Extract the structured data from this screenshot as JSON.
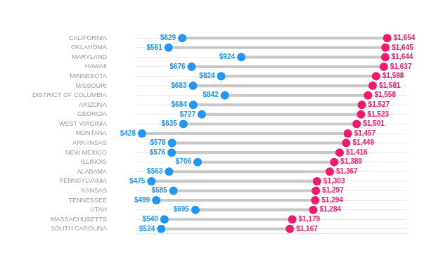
{
  "chart_data": {
    "type": "dumbbell",
    "orientation": "horizontal",
    "categories": [
      "CALIFORNIA",
      "OKLAHOMA",
      "MARYLAND",
      "HAWAII",
      "MINNESOTA",
      "MISSOURI",
      "DISTRICT OF COLUMBIA",
      "ARIZONA",
      "GEORGIA",
      "WEST VIRGINIA",
      "MONTANA",
      "ARKANSAS",
      "NEW MEXICO",
      "ILLINOIS",
      "ALABAMA",
      "PENNSYLVANIA",
      "KANSAS",
      "TENNESSEE",
      "UTAH",
      "MASSACHUSETTS",
      "SOUTH CAROLINA"
    ],
    "color": "#C8C8C8",
    "series": [
      {
        "color": "#2196F3",
        "values": [
          629,
          561,
          924,
          676,
          824,
          683,
          842,
          684,
          727,
          635,
          428,
          578,
          576,
          706,
          563,
          475,
          585,
          499,
          695,
          540,
          524
        ],
        "value_labels": [
          "$629",
          "$561",
          "$924",
          "$676",
          "$824",
          "$683",
          "$842",
          "$684",
          "$727",
          "$635",
          "$428",
          "$578",
          "$576",
          "$706",
          "$563",
          "$475",
          "$585",
          "$499",
          "$695",
          "$540",
          "$524"
        ]
      },
      {
        "color": "#F0196E",
        "values": [
          1654,
          1645,
          1644,
          1637,
          1598,
          1581,
          1558,
          1527,
          1523,
          1501,
          1457,
          1449,
          1416,
          1389,
          1367,
          1303,
          1297,
          1294,
          1284,
          1179,
          1167
        ],
        "value_labels": [
          "$1,654",
          "$1,645",
          "$1,644",
          "$1,637",
          "$1,598",
          "$1,581",
          "$1,558",
          "$1,527",
          "$1,523",
          "$1,501",
          "$1,457",
          "$1,449",
          "$1,416",
          "$1,389",
          "$1,367",
          "$1,303",
          "$1,297",
          "$1,294",
          "$1,284",
          "$1,179",
          "$1,167"
        ]
      }
    ],
    "xlim": [
      400,
      1750
    ],
    "grid": true,
    "data_labels": true,
    "tick_labels": "y"
  }
}
